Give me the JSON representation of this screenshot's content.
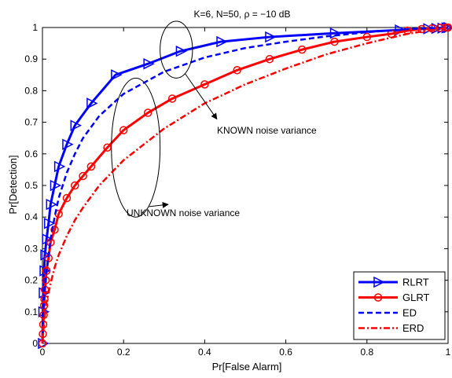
{
  "chart_data": {
    "type": "line",
    "title": "K=6, N=50, ρ = −10 dB",
    "xlabel": "Pr[False Alarm]",
    "ylabel": "Pr[Detection]",
    "xlim": [
      0,
      1
    ],
    "ylim": [
      0,
      1
    ],
    "xticks": [
      "0",
      "0.2",
      "0.4",
      "0.6",
      "0.8",
      "1"
    ],
    "yticks": [
      "0",
      "0.1",
      "0.2",
      "0.3",
      "0.4",
      "0.5",
      "0.6",
      "0.7",
      "0.8",
      "0.9",
      "1"
    ],
    "legend_position": "bottom-right",
    "grid": false,
    "series": [
      {
        "name": "RLRT",
        "color": "#0000ff",
        "line_style": "solid",
        "marker": "triangle-right",
        "x": [
          0,
          0.001,
          0.002,
          0.004,
          0.006,
          0.01,
          0.015,
          0.02,
          0.03,
          0.04,
          0.06,
          0.08,
          0.12,
          0.18,
          0.26,
          0.34,
          0.44,
          0.56,
          0.72,
          0.88,
          0.95,
          0.97,
          0.985,
          0.995,
          1
        ],
        "y": [
          0,
          0.1,
          0.16,
          0.23,
          0.28,
          0.33,
          0.38,
          0.44,
          0.5,
          0.56,
          0.63,
          0.69,
          0.76,
          0.85,
          0.885,
          0.925,
          0.955,
          0.97,
          0.982,
          0.992,
          0.996,
          0.997,
          0.998,
          0.999,
          1
        ]
      },
      {
        "name": "GLRT",
        "color": "#ff0000",
        "line_style": "solid",
        "marker": "circle",
        "x": [
          0,
          0.001,
          0.002,
          0.003,
          0.004,
          0.005,
          0.006,
          0.008,
          0.01,
          0.015,
          0.02,
          0.03,
          0.04,
          0.06,
          0.08,
          0.1,
          0.12,
          0.16,
          0.2,
          0.26,
          0.32,
          0.4,
          0.48,
          0.56,
          0.64,
          0.72,
          0.8,
          0.86,
          0.9,
          0.935,
          0.96,
          0.98,
          0.995,
          1
        ],
        "y": [
          0,
          0.03,
          0.06,
          0.09,
          0.12,
          0.14,
          0.17,
          0.2,
          0.23,
          0.27,
          0.32,
          0.36,
          0.41,
          0.46,
          0.5,
          0.53,
          0.56,
          0.62,
          0.675,
          0.73,
          0.775,
          0.82,
          0.865,
          0.9,
          0.93,
          0.955,
          0.97,
          0.98,
          0.99,
          0.995,
          0.997,
          0.999,
          1,
          1
        ]
      },
      {
        "name": "ED",
        "color": "#0000ff",
        "line_style": "dashed",
        "marker": "none",
        "x": [
          0,
          0.002,
          0.005,
          0.01,
          0.015,
          0.02,
          0.03,
          0.04,
          0.06,
          0.08,
          0.1,
          0.14,
          0.2,
          0.3,
          0.4,
          0.5,
          0.6,
          0.7,
          0.8,
          0.9,
          1
        ],
        "y": [
          0,
          0.1,
          0.16,
          0.23,
          0.28,
          0.33,
          0.4,
          0.46,
          0.54,
          0.6,
          0.65,
          0.72,
          0.79,
          0.86,
          0.905,
          0.935,
          0.955,
          0.972,
          0.985,
          0.995,
          1
        ]
      },
      {
        "name": "ERD",
        "color": "#ff0000",
        "line_style": "dash-dot",
        "marker": "none",
        "x": [
          0,
          0.003,
          0.006,
          0.01,
          0.015,
          0.02,
          0.03,
          0.04,
          0.06,
          0.08,
          0.1,
          0.14,
          0.2,
          0.3,
          0.4,
          0.5,
          0.6,
          0.7,
          0.8,
          0.9,
          1
        ],
        "y": [
          0,
          0.05,
          0.09,
          0.13,
          0.16,
          0.19,
          0.24,
          0.28,
          0.34,
          0.39,
          0.43,
          0.5,
          0.58,
          0.68,
          0.76,
          0.82,
          0.87,
          0.915,
          0.95,
          0.98,
          1
        ]
      }
    ],
    "annotations": [
      {
        "text": "KNOWN noise variance",
        "ellipse_center": [
          0.33,
          0.93
        ],
        "ellipse_span": [
          0.04,
          0.09
        ],
        "arrow_to": [
          0.43,
          0.71
        ]
      },
      {
        "text": "UNKNOWN noise variance",
        "ellipse_center": [
          0.23,
          0.62
        ],
        "ellipse_span": [
          0.06,
          0.22
        ],
        "arrow_to": [
          0.31,
          0.44
        ]
      }
    ]
  }
}
